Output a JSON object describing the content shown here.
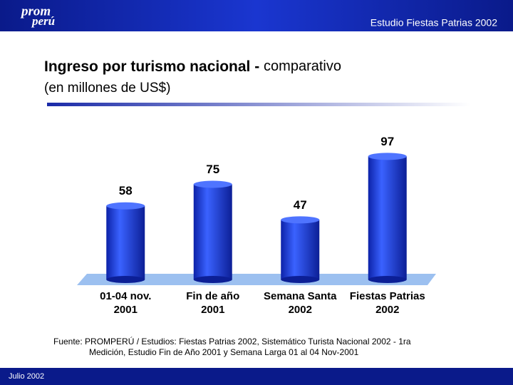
{
  "header": {
    "logo": [
      "prom",
      "perú"
    ],
    "caption": "Estudio Fiestas Patrias 2002"
  },
  "chart_data": {
    "type": "bar",
    "title": [
      "Ingreso por turismo nacional -",
      "comparativo"
    ],
    "subtitle": "(en millones de US$)",
    "categories": [
      "01-04 nov.\n2001",
      "Fin de año\n2001",
      "Semana Santa\n2002",
      "Fiestas Patrias\n2002"
    ],
    "values": [
      58,
      75,
      47,
      97
    ],
    "color": "#2246e0"
  },
  "source": [
    "Fuente: PROMPERÚ / Estudios: Fiestas Patrias 2002, Sistemático Turista Nacional 2002 - 1ra",
    "Medición, Estudio Fin de Año 2001 y Semana Larga 01 al 04 Nov-2001"
  ],
  "footer": "Julio 2002"
}
